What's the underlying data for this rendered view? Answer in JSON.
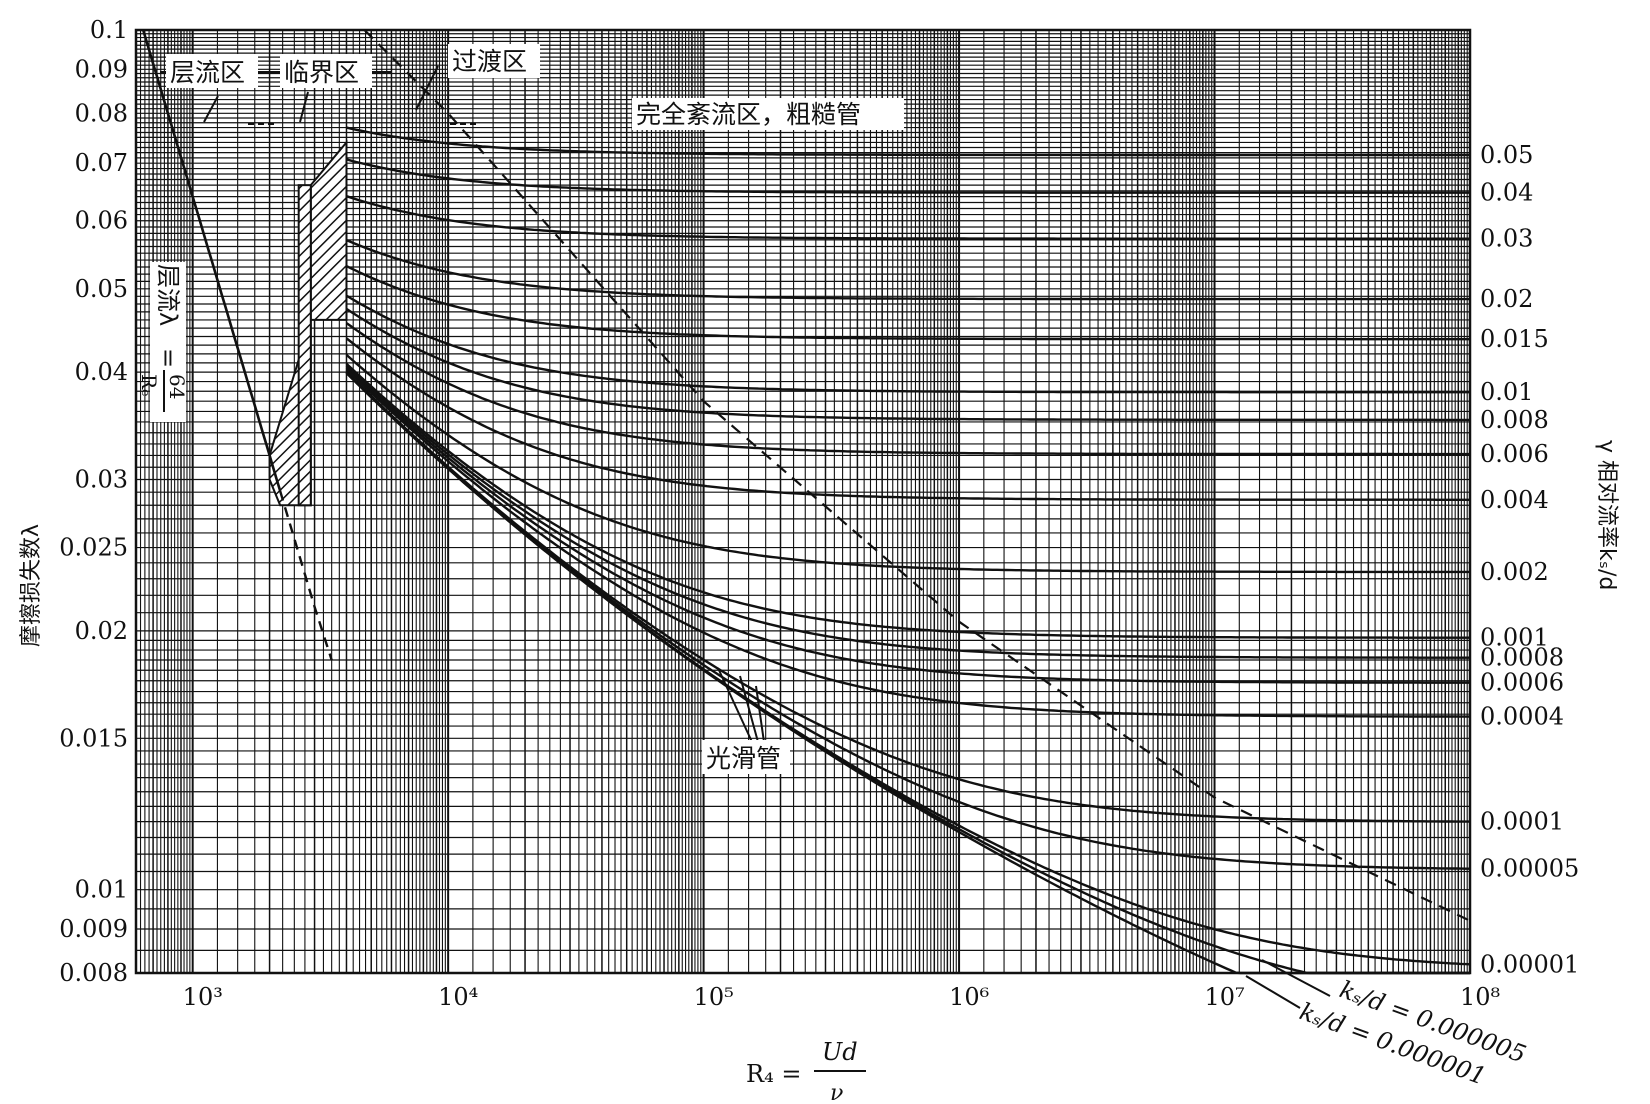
{
  "chart_data": {
    "type": "line",
    "title": "",
    "x_scale": "log",
    "y_scale": "log",
    "xlim": [
      600,
      100000000
    ],
    "ylim": [
      0.008,
      0.1
    ],
    "grid": true,
    "xlabel": "R₄ = Ud / ν",
    "ylabel_left": "摩擦损失数λ",
    "ylabel_right": "γ 相对流率kₛ/d",
    "x_ticks": [
      {
        "value": 1000,
        "label": "10³"
      },
      {
        "value": 10000,
        "label": "10⁴"
      },
      {
        "value": 100000,
        "label": "10⁵"
      },
      {
        "value": 1000000,
        "label": "10⁶"
      },
      {
        "value": 10000000,
        "label": "10⁷"
      },
      {
        "value": 100000000,
        "label": "10⁸"
      }
    ],
    "y_ticks": [
      {
        "value": 0.1,
        "label": "0.1"
      },
      {
        "value": 0.09,
        "label": "0.09"
      },
      {
        "value": 0.08,
        "label": "0.08"
      },
      {
        "value": 0.07,
        "label": "0.07"
      },
      {
        "value": 0.06,
        "label": "0.06"
      },
      {
        "value": 0.05,
        "label": "0.05"
      },
      {
        "value": 0.04,
        "label": "0.04"
      },
      {
        "value": 0.03,
        "label": "0.03"
      },
      {
        "value": 0.025,
        "label": "0.025"
      },
      {
        "value": 0.02,
        "label": "0.02"
      },
      {
        "value": 0.015,
        "label": "0.015"
      },
      {
        "value": 0.01,
        "label": "0.01"
      },
      {
        "value": 0.009,
        "label": "0.009"
      },
      {
        "value": 0.008,
        "label": "0.008"
      }
    ],
    "zone_labels": [
      "层流区",
      "临界区",
      "过渡区",
      "完全紊流区，粗糙管"
    ],
    "laminar_label": "层流λ = 64/Rₑ",
    "smooth_label": "光滑管",
    "series": [
      {
        "name": "0.05",
        "roughness": 0.05
      },
      {
        "name": "0.04",
        "roughness": 0.04
      },
      {
        "name": "0.03",
        "roughness": 0.03
      },
      {
        "name": "0.02",
        "roughness": 0.02
      },
      {
        "name": "0.015",
        "roughness": 0.015
      },
      {
        "name": "0.01",
        "roughness": 0.01
      },
      {
        "name": "0.008",
        "roughness": 0.008
      },
      {
        "name": "0.006",
        "roughness": 0.006
      },
      {
        "name": "0.004",
        "roughness": 0.004
      },
      {
        "name": "0.002",
        "roughness": 0.002
      },
      {
        "name": "0.001",
        "roughness": 0.001
      },
      {
        "name": "0.0008",
        "roughness": 0.0008
      },
      {
        "name": "0.0006",
        "roughness": 0.0006
      },
      {
        "name": "0.0004",
        "roughness": 0.0004
      },
      {
        "name": "0.0001",
        "roughness": 0.0001
      },
      {
        "name": "0.00005",
        "roughness": 5e-05
      },
      {
        "name": "0.00001",
        "roughness": 1e-05
      }
    ],
    "bottom_annotations": [
      "kₛ/d = 0.000005",
      "kₛ/d = 0.000001"
    ]
  },
  "labels": {
    "zone_laminar": "层流区",
    "zone_critical": "临界区",
    "zone_transition": "过渡区",
    "zone_rough": "完全紊流区，粗糙管",
    "smooth_pipe": "光滑管",
    "laminar_eq_lambda": "层流λ",
    "laminar_eq_num": "64",
    "laminar_eq_den": "Rₑ",
    "ylabel_left": "摩擦损失数λ",
    "ylabel_right": "γ 相对流率kₛ/d",
    "xlabel_lhs": "R₄ =",
    "xlabel_num": "Ud",
    "xlabel_den": "ν",
    "ks1": "kₛ/d = 0.000005",
    "ks2": "kₛ/d = 0.000001"
  }
}
